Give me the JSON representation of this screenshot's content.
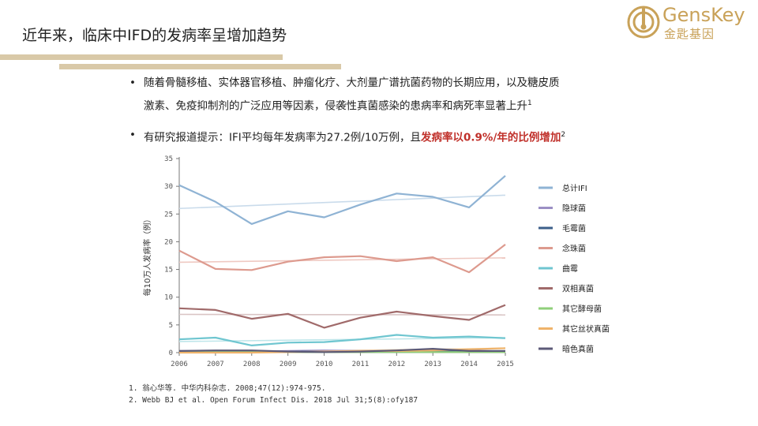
{
  "slide": {
    "title": "近年来，临床中IFD的发病率呈增加趋势"
  },
  "logo": {
    "name_en": "GensKey",
    "name_cn": "金匙基因"
  },
  "bullets": {
    "b1_line1": "随着骨髓移植、实体器官移植、肿瘤化疗、大剂量广谱抗菌药物的长期应用，以及糖皮质",
    "b1_line2": "激素、免疫抑制剂的广泛应用等因素，侵袭性真菌感染的患病率和病死率显著上升",
    "b1_ref": "1",
    "b2_text": "有研究报道提示：IFI平均每年发病率为27.2例/10万例，且",
    "b2_highlight": "发病率以0.9%/年的比例增加",
    "b2_ref": "2"
  },
  "references": {
    "r1": "1. 翁心华等. 中华内科杂志. 2008;47(12):974-975.",
    "r2": "2. Webb BJ et al. Open Forum Infect Dis. 2018 Jul 31;5(8):ofy187"
  },
  "chart_data": {
    "type": "line",
    "ylabel": "每10万人发病率（例）",
    "xlabel": "",
    "ylim": [
      0,
      35
    ],
    "yticks": [
      0,
      5,
      10,
      15,
      20,
      25,
      30,
      35
    ],
    "x": [
      2006,
      2007,
      2008,
      2009,
      2010,
      2011,
      2012,
      2013,
      2014,
      2015
    ],
    "legend_position": "right",
    "grid": false,
    "series": [
      {
        "name": "总计IFI",
        "color": "#8fb3d4",
        "values": [
          30.2,
          27.2,
          23.2,
          25.5,
          24.4,
          26.7,
          28.7,
          28.1,
          26.2,
          31.9
        ]
      },
      {
        "name": "隐球菌",
        "color": "#9b8fc4",
        "values": [
          0.3,
          0.3,
          0.2,
          0.3,
          0.4,
          0.3,
          0.3,
          0.3,
          0.4,
          0.2
        ]
      },
      {
        "name": "毛霉菌",
        "color": "#3c5f8a",
        "values": [
          0.2,
          0.2,
          0.2,
          0.2,
          0.2,
          0.2,
          0.2,
          0.3,
          0.2,
          0.2
        ]
      },
      {
        "name": "念珠菌",
        "color": "#dd9a8e",
        "values": [
          18.4,
          15.1,
          14.9,
          16.4,
          17.2,
          17.4,
          16.5,
          17.2,
          14.5,
          19.5
        ]
      },
      {
        "name": "曲霉",
        "color": "#6fc6d0",
        "values": [
          2.4,
          2.7,
          1.3,
          1.8,
          1.9,
          2.4,
          3.2,
          2.7,
          2.9,
          2.6
        ]
      },
      {
        "name": "双相真菌",
        "color": "#a06a6a",
        "values": [
          8.0,
          7.7,
          6.1,
          7.0,
          4.5,
          6.3,
          7.4,
          6.6,
          5.9,
          8.6
        ]
      },
      {
        "name": "其它酵母菌",
        "color": "#8fcf7a",
        "values": [
          0.1,
          0.1,
          0.1,
          0.1,
          0.1,
          0.1,
          0.1,
          0.1,
          0.1,
          0.1
        ]
      },
      {
        "name": "其它丝状真菌",
        "color": "#efb36a",
        "values": [
          0.0,
          0.0,
          0.0,
          0.1,
          0.2,
          0.3,
          0.3,
          0.4,
          0.6,
          0.8
        ]
      },
      {
        "name": "暗色真菌",
        "color": "#5c5a78",
        "values": [
          0.3,
          0.4,
          0.4,
          0.2,
          0.1,
          0.2,
          0.4,
          0.7,
          0.3,
          0.3
        ]
      }
    ],
    "trendlines": [
      {
        "series": "总计IFI",
        "color": "#c9dbeb",
        "start": 26.0,
        "end": 28.4
      },
      {
        "series": "念珠菌",
        "color": "#efc9c2",
        "start": 16.3,
        "end": 17.1
      },
      {
        "series": "双相真菌",
        "color": "#d9c4c4",
        "start": 6.9,
        "end": 6.8
      },
      {
        "series": "曲霉",
        "color": "#bfe6ea",
        "start": 2.0,
        "end": 2.7
      },
      {
        "series": "其它丝状真菌",
        "color": "#f6dcb8",
        "start": 0.0,
        "end": 0.8
      }
    ]
  }
}
